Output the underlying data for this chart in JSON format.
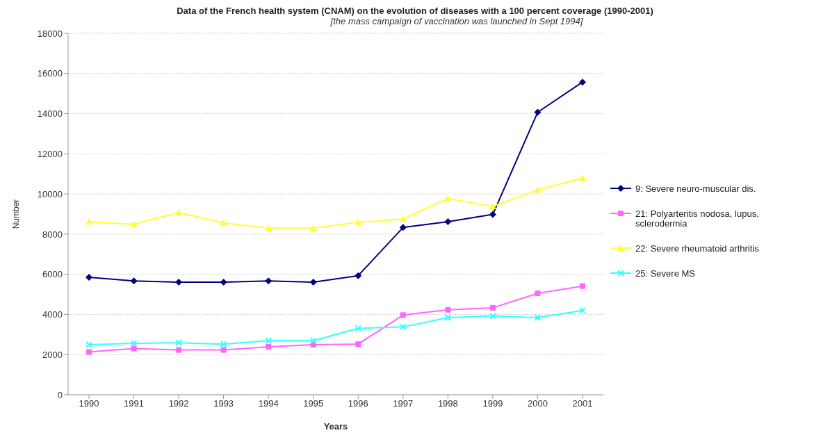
{
  "chart_data": {
    "type": "line",
    "title": "Data of the French health system (CNAM) on the evolution of diseases with a 100 percent coverage (1990-2001)",
    "subtitle": "[the mass campaign of vaccination was launched in Sept 1994]",
    "xlabel": "Years",
    "ylabel": "Number",
    "categories": [
      "1990",
      "1991",
      "1992",
      "1993",
      "1994",
      "1995",
      "1996",
      "1997",
      "1998",
      "1999",
      "2000",
      "2001"
    ],
    "series": [
      {
        "name": "9: Severe neuro-muscular dis.",
        "color": "#000080",
        "marker": "diamond",
        "values": [
          5850,
          5670,
          5610,
          5610,
          5670,
          5610,
          5930,
          8330,
          8620,
          8980,
          14070,
          15570
        ]
      },
      {
        "name": "21: Polyarteritis nodosa, lupus, sclerodermia",
        "color": "#ff66ff",
        "marker": "square",
        "values": [
          2130,
          2300,
          2230,
          2230,
          2390,
          2490,
          2520,
          3970,
          4230,
          4330,
          5050,
          5410
        ]
      },
      {
        "name": "22: Severe rheumatoid arthritis",
        "color": "#ffff33",
        "marker": "triangle",
        "values": [
          8620,
          8490,
          9080,
          8560,
          8300,
          8300,
          8590,
          8750,
          9770,
          9380,
          10200,
          10790
        ]
      },
      {
        "name": "25: Severe MS",
        "color": "#33ffff",
        "marker": "cross",
        "values": [
          2490,
          2560,
          2590,
          2520,
          2690,
          2690,
          3310,
          3380,
          3840,
          3930,
          3840,
          4200
        ]
      }
    ],
    "ylim": [
      0,
      18000
    ],
    "yticks": [
      0,
      2000,
      4000,
      6000,
      8000,
      10000,
      12000,
      14000,
      16000,
      18000
    ],
    "grid": "y",
    "legend": "right"
  }
}
